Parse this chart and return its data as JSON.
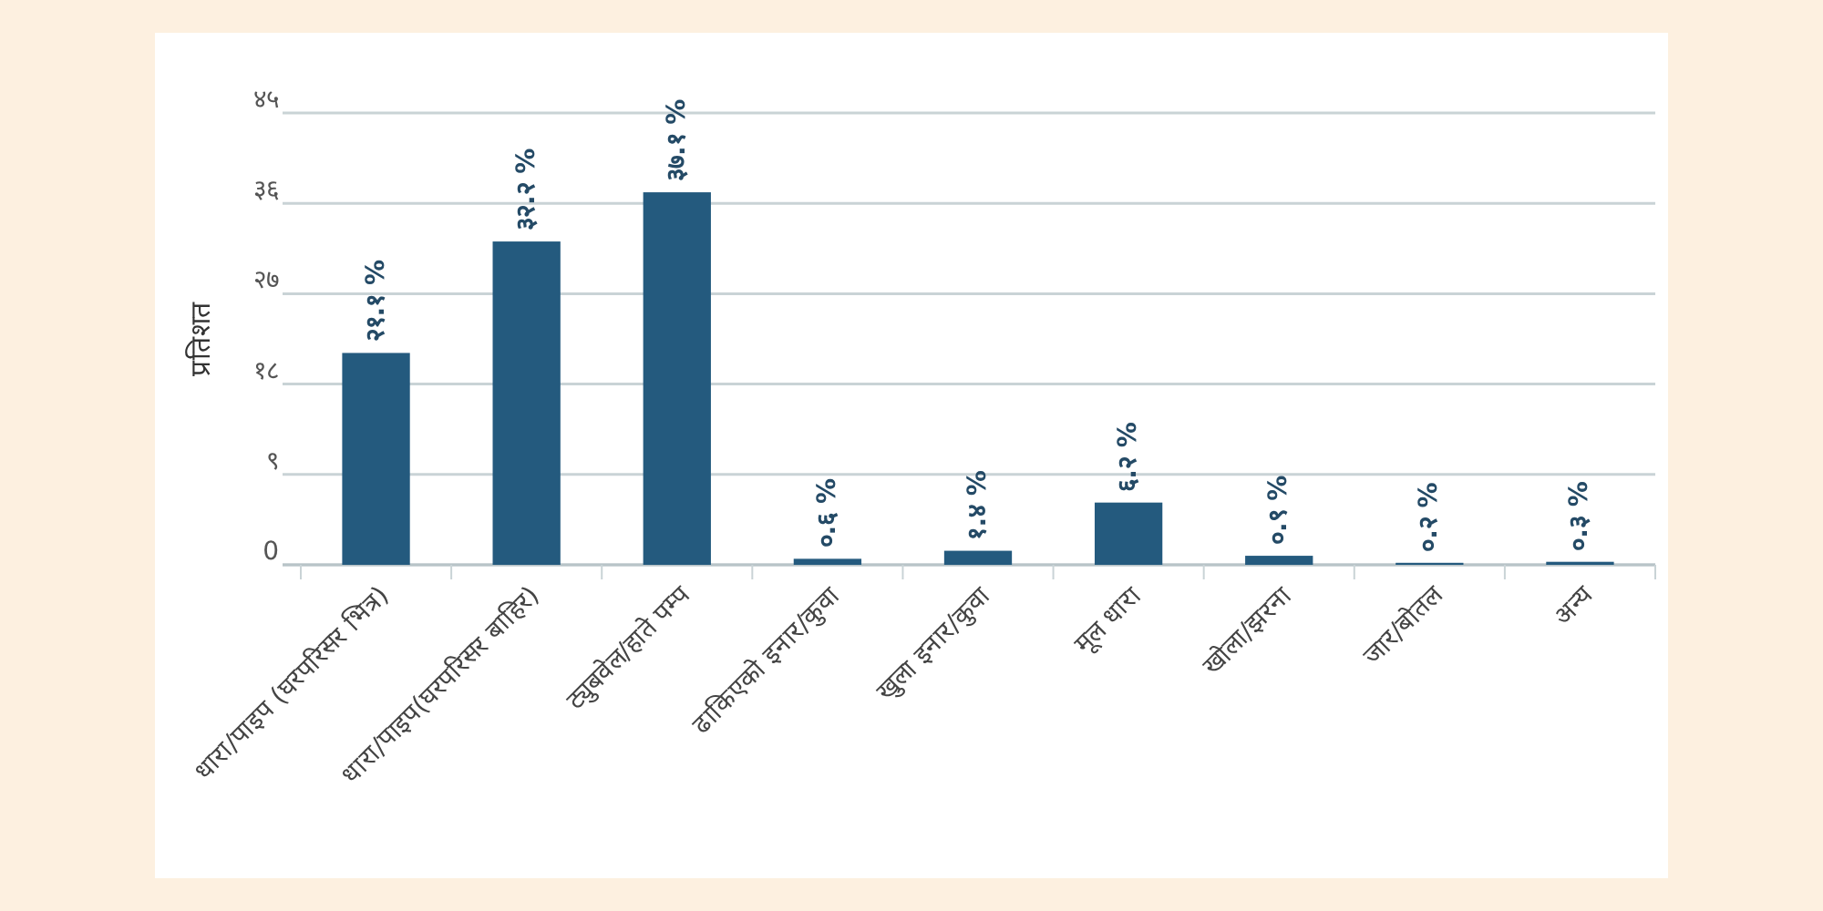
{
  "chart_data": {
    "type": "bar",
    "ylabel": "प्रतिशत",
    "categories": [
      "धारा/पाइप (घरपरिसर भित्र)",
      "धारा/पाइप(घरपरिसर बाहिर)",
      "ट्युबवेल/हाते पम्प",
      "ढाकिएको इनार/कुवा",
      "खुला इनार/कुवा",
      "मूल धारा",
      "खोला/झरना",
      "जार/बोतल",
      "अन्य"
    ],
    "values": [
      21.1,
      32.2,
      37.1,
      0.6,
      1.4,
      6.2,
      0.9,
      0.2,
      0.3
    ],
    "value_labels": [
      "२१.१ %",
      "३२.२ %",
      "३७.१ %",
      "०.६ %",
      "१.४ %",
      "६.२ %",
      "०.९ %",
      "०.२ %",
      "०.३ %"
    ],
    "color": "#245a7e",
    "ylim": [
      0,
      45
    ],
    "yticks": [
      {
        "value": 0,
        "label": "0"
      },
      {
        "value": 9,
        "label": "९"
      },
      {
        "value": 18,
        "label": "१८"
      },
      {
        "value": 27,
        "label": "२७"
      },
      {
        "value": 36,
        "label": "३६"
      },
      {
        "value": 45,
        "label": "४५"
      }
    ],
    "grid": "y"
  }
}
